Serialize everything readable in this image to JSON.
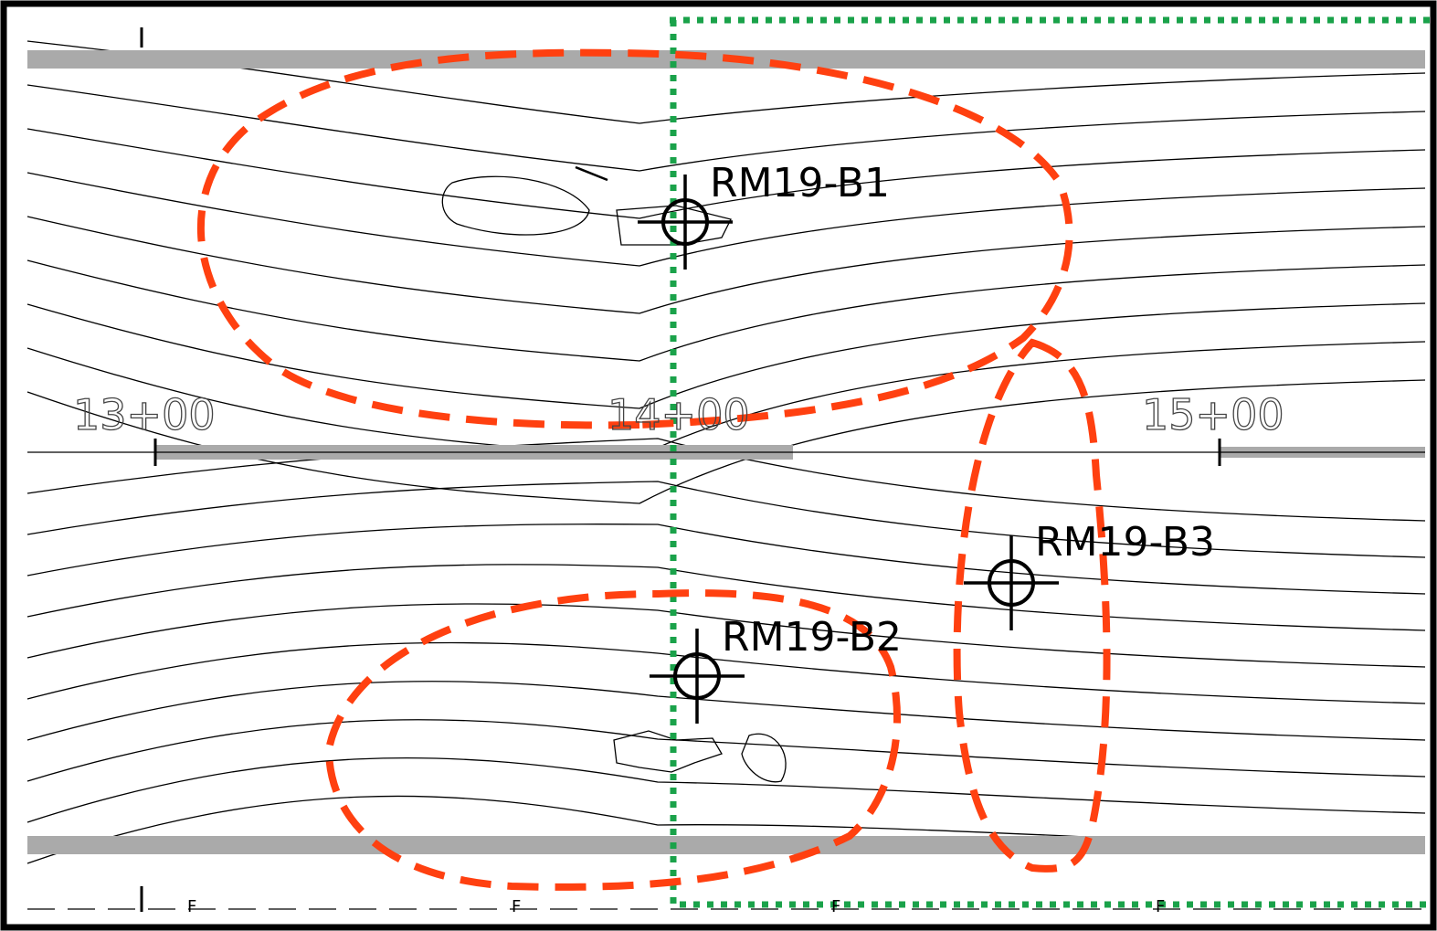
{
  "stations": [
    "13+00",
    "14+00",
    "15+00"
  ],
  "borings": [
    "RM19-B1",
    "RM19-B2",
    "RM19-B3"
  ],
  "fence_marks": [
    "F",
    "F",
    "F",
    "F"
  ]
}
